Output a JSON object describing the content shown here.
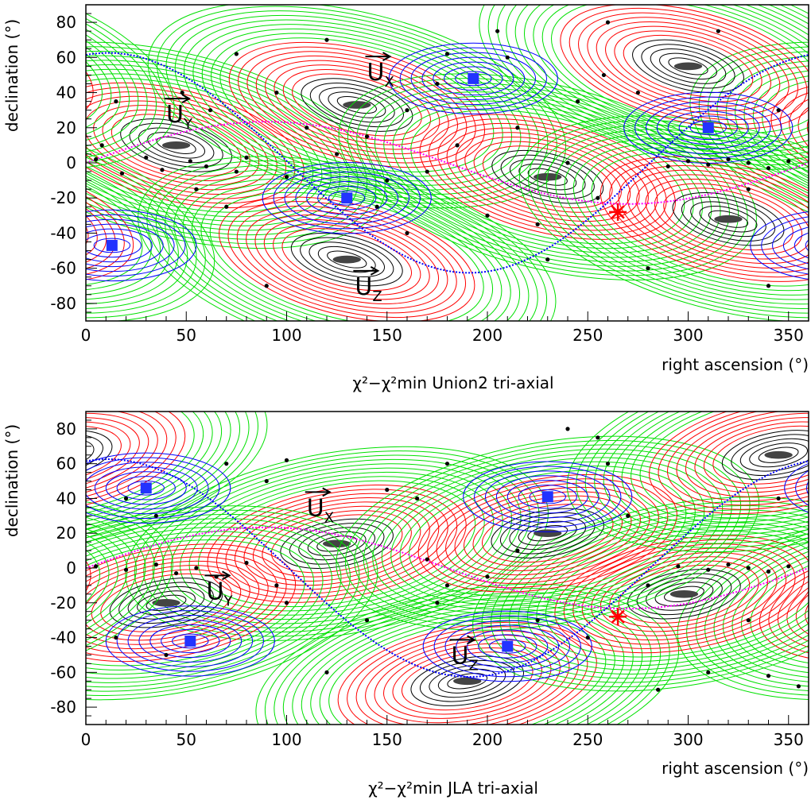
{
  "colors": {
    "black_contour": "#000000",
    "red_contour": "#ff0000",
    "green_contour": "#00e000",
    "blue_contour": "#0000ff",
    "magenta_curve": "#ff00ff",
    "blue_curve": "#0000ff",
    "star": "#ff0000",
    "minimum_marker": "#444444",
    "blue_marker": "#2233ff"
  },
  "chart_data": [
    {
      "type": "contour",
      "title": "χ²−χ²min Union2 tri-axial",
      "xlabel": "right ascension (°)",
      "ylabel": "declination (°)",
      "xlim": [
        0,
        360
      ],
      "ylim": [
        -90,
        90
      ],
      "x_ticks": [
        0,
        50,
        100,
        150,
        200,
        250,
        300,
        350
      ],
      "y_ticks": [
        -80,
        -60,
        -40,
        -20,
        0,
        20,
        40,
        60,
        80
      ],
      "grid": false,
      "minima": [
        {
          "ra": 45,
          "dec": 10
        },
        {
          "ra": 135,
          "dec": 33
        },
        {
          "ra": 230,
          "dec": -8
        },
        {
          "ra": 320,
          "dec": -32
        },
        {
          "ra": 130,
          "dec": -55
        },
        {
          "ra": 300,
          "dec": 55
        }
      ],
      "blue_minima": [
        {
          "ra": 193,
          "dec": 48
        },
        {
          "ra": 130,
          "dec": -20
        },
        {
          "ra": 13,
          "dec": -47
        },
        {
          "ra": 310,
          "dec": 20
        }
      ],
      "vector_labels": [
        {
          "text": "U",
          "sub": "X",
          "ra": 140,
          "dec": 47
        },
        {
          "text": "U",
          "sub": "Y",
          "ra": 40,
          "dec": 23
        },
        {
          "text": "U",
          "sub": "Z",
          "ra": 134,
          "dec": -75
        }
      ],
      "star": {
        "ra": 265,
        "dec": -28
      },
      "sne": [
        {
          "ra": 5,
          "dec": 2
        },
        {
          "ra": 18,
          "dec": -6
        },
        {
          "ra": 30,
          "dec": 3
        },
        {
          "ra": 38,
          "dec": -4
        },
        {
          "ra": 52,
          "dec": 1
        },
        {
          "ra": 60,
          "dec": -2
        },
        {
          "ra": 75,
          "dec": -5
        },
        {
          "ra": 80,
          "dec": 3
        },
        {
          "ra": 62,
          "dec": 30
        },
        {
          "ra": 48,
          "dec": 40
        },
        {
          "ra": 15,
          "dec": 35
        },
        {
          "ra": 8,
          "dec": 10
        },
        {
          "ra": 55,
          "dec": -15
        },
        {
          "ra": 70,
          "dec": -25
        },
        {
          "ra": 95,
          "dec": 40
        },
        {
          "ra": 100,
          "dec": -8
        },
        {
          "ra": 110,
          "dec": 20
        },
        {
          "ra": 125,
          "dec": 5
        },
        {
          "ra": 140,
          "dec": 15
        },
        {
          "ra": 150,
          "dec": -10
        },
        {
          "ra": 160,
          "dec": 30
        },
        {
          "ra": 170,
          "dec": -5
        },
        {
          "ra": 175,
          "dec": 45
        },
        {
          "ra": 180,
          "dec": 62
        },
        {
          "ra": 185,
          "dec": 10
        },
        {
          "ra": 200,
          "dec": -30
        },
        {
          "ra": 210,
          "dec": 60
        },
        {
          "ra": 215,
          "dec": 20
        },
        {
          "ra": 225,
          "dec": -35
        },
        {
          "ra": 240,
          "dec": 0
        },
        {
          "ra": 245,
          "dec": 35
        },
        {
          "ra": 255,
          "dec": -20
        },
        {
          "ra": 258,
          "dec": 50
        },
        {
          "ra": 260,
          "dec": 80
        },
        {
          "ra": 275,
          "dec": 40
        },
        {
          "ra": 290,
          "dec": -2
        },
        {
          "ra": 300,
          "dec": 1
        },
        {
          "ra": 310,
          "dec": -1
        },
        {
          "ra": 320,
          "dec": 2
        },
        {
          "ra": 330,
          "dec": 0
        },
        {
          "ra": 340,
          "dec": -3
        },
        {
          "ra": 350,
          "dec": 1
        },
        {
          "ra": 345,
          "dec": 30
        },
        {
          "ra": 330,
          "dec": -15
        },
        {
          "ra": 280,
          "dec": -60
        },
        {
          "ra": 340,
          "dec": -70
        },
        {
          "ra": 90,
          "dec": -70
        },
        {
          "ra": 160,
          "dec": -40
        },
        {
          "ra": 205,
          "dec": 75
        },
        {
          "ra": 75,
          "dec": 62
        },
        {
          "ra": 120,
          "dec": 70
        },
        {
          "ra": 145,
          "dec": -25
        },
        {
          "ra": 230,
          "dec": -55
        },
        {
          "ra": 315,
          "dec": 75
        }
      ]
    },
    {
      "type": "contour",
      "title": "χ²−χ²min JLA tri-axial",
      "xlabel": "right ascension (°)",
      "ylabel": "declination (°)",
      "xlim": [
        0,
        360
      ],
      "ylim": [
        -90,
        90
      ],
      "x_ticks": [
        0,
        50,
        100,
        150,
        200,
        250,
        300,
        350
      ],
      "y_ticks": [
        -80,
        -60,
        -40,
        -20,
        0,
        20,
        40,
        60,
        80
      ],
      "grid": false,
      "minima": [
        {
          "ra": 125,
          "dec": 14
        },
        {
          "ra": 40,
          "dec": -20
        },
        {
          "ra": 190,
          "dec": -65
        },
        {
          "ra": 298,
          "dec": -15
        },
        {
          "ra": 230,
          "dec": 20
        },
        {
          "ra": 345,
          "dec": 65
        }
      ],
      "blue_minima": [
        {
          "ra": 30,
          "dec": 46
        },
        {
          "ra": 230,
          "dec": 41
        },
        {
          "ra": 52,
          "dec": -42
        },
        {
          "ra": 210,
          "dec": -45
        }
      ],
      "vector_labels": [
        {
          "text": "U",
          "sub": "X",
          "ra": 110,
          "dec": 30
        },
        {
          "text": "U",
          "sub": "Y",
          "ra": 60,
          "dec": -18
        },
        {
          "text": "U",
          "sub": "Z",
          "ra": 182,
          "dec": -55
        }
      ],
      "star": {
        "ra": 265,
        "dec": -28
      },
      "sne": [
        {
          "ra": 5,
          "dec": 1
        },
        {
          "ra": 20,
          "dec": -1
        },
        {
          "ra": 35,
          "dec": 2
        },
        {
          "ra": 45,
          "dec": -3
        },
        {
          "ra": 55,
          "dec": 0
        },
        {
          "ra": 65,
          "dec": -5
        },
        {
          "ra": 80,
          "dec": 3
        },
        {
          "ra": 95,
          "dec": -10
        },
        {
          "ra": 100,
          "dec": -20
        },
        {
          "ra": 90,
          "dec": 50
        },
        {
          "ra": 100,
          "dec": 62
        },
        {
          "ra": 20,
          "dec": 40
        },
        {
          "ra": 35,
          "dec": 30
        },
        {
          "ra": 15,
          "dec": -40
        },
        {
          "ra": 40,
          "dec": -50
        },
        {
          "ra": 120,
          "dec": -60
        },
        {
          "ra": 150,
          "dec": 45
        },
        {
          "ra": 165,
          "dec": 40
        },
        {
          "ra": 170,
          "dec": 5
        },
        {
          "ra": 175,
          "dec": -20
        },
        {
          "ra": 180,
          "dec": 60
        },
        {
          "ra": 200,
          "dec": -5
        },
        {
          "ra": 215,
          "dec": 10
        },
        {
          "ra": 225,
          "dec": -30
        },
        {
          "ra": 250,
          "dec": -40
        },
        {
          "ra": 255,
          "dec": 75
        },
        {
          "ra": 260,
          "dec": 60
        },
        {
          "ra": 270,
          "dec": 30
        },
        {
          "ra": 280,
          "dec": -10
        },
        {
          "ra": 295,
          "dec": 1
        },
        {
          "ra": 310,
          "dec": -1
        },
        {
          "ra": 320,
          "dec": 2
        },
        {
          "ra": 330,
          "dec": 0
        },
        {
          "ra": 340,
          "dec": -2
        },
        {
          "ra": 350,
          "dec": 1
        },
        {
          "ra": 345,
          "dec": 40
        },
        {
          "ra": 330,
          "dec": -30
        },
        {
          "ra": 310,
          "dec": -60
        },
        {
          "ra": 340,
          "dec": -62
        },
        {
          "ra": 355,
          "dec": -68
        },
        {
          "ra": 285,
          "dec": -70
        },
        {
          "ra": 180,
          "dec": -10
        },
        {
          "ra": 140,
          "dec": -30
        },
        {
          "ra": 70,
          "dec": 60
        },
        {
          "ra": 240,
          "dec": 80
        }
      ]
    }
  ]
}
